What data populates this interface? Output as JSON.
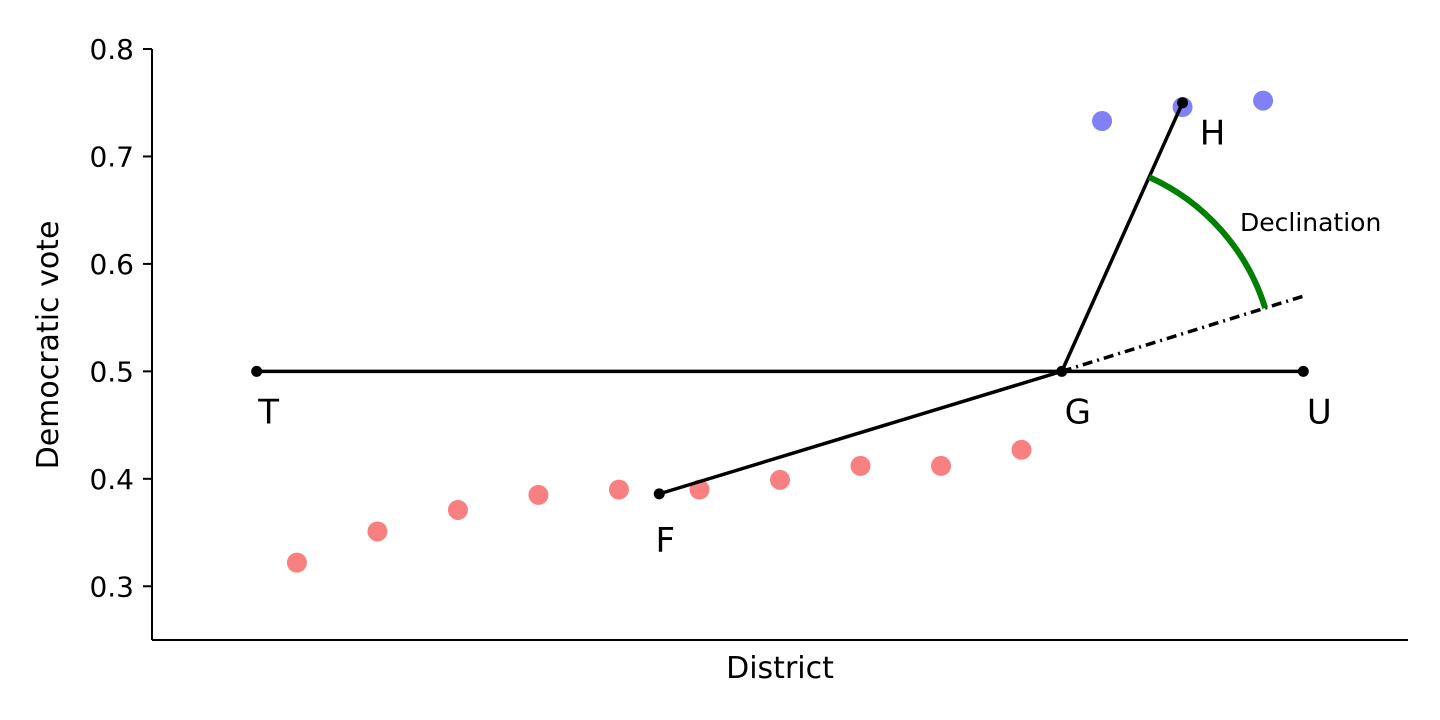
{
  "chart_data": {
    "type": "scatter",
    "xlabel": "District",
    "ylabel": "Democratic vote",
    "xlim": [
      -0.8,
      14.8
    ],
    "ylim": [
      0.25,
      0.8
    ],
    "yticks": [
      0.3,
      0.4,
      0.5,
      0.6,
      0.7,
      0.8
    ],
    "series": [
      {
        "color": "#f88080",
        "x": [
          1,
          2,
          3,
          4,
          5,
          6,
          7,
          8,
          9,
          10
        ],
        "values": [
          0.322,
          0.351,
          0.371,
          0.385,
          0.39,
          0.39,
          0.399,
          0.412,
          0.412,
          0.427
        ]
      },
      {
        "color": "#8080f8",
        "x": [
          11,
          12,
          13
        ],
        "values": [
          0.733,
          0.746,
          0.752
        ]
      }
    ],
    "points": [
      {
        "label": "T",
        "x": 0.5,
        "y": 0.5
      },
      {
        "label": "F",
        "x": 5.5,
        "y": 0.386
      },
      {
        "label": "G",
        "x": 10.5,
        "y": 0.5
      },
      {
        "label": "H",
        "x": 12,
        "y": 0.75
      },
      {
        "label": "U",
        "x": 13.5,
        "y": 0.5
      }
    ],
    "extension": {
      "x": 13.5,
      "y": 0.57
    },
    "annotation": "Declination",
    "angle_color": "#008000"
  }
}
